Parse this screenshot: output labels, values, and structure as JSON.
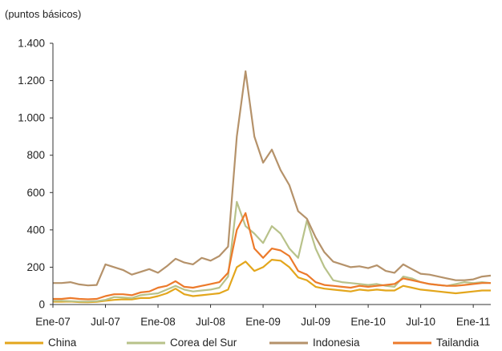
{
  "chart_data": {
    "type": "line",
    "title": "",
    "y_unit_label": "(puntos básicos)",
    "xlabel": "",
    "ylabel": "",
    "ylim": [
      0,
      1400
    ],
    "y_ticks": [
      0,
      200,
      400,
      600,
      800,
      1000,
      1200,
      1400
    ],
    "y_tick_labels": [
      "0",
      "200",
      "400",
      "600",
      "800",
      "1.000",
      "1.200",
      "1.400"
    ],
    "x_range": [
      "2007-01",
      "2011-03"
    ],
    "x_ticks": [
      "2007-01",
      "2007-07",
      "2008-01",
      "2008-07",
      "2009-01",
      "2009-07",
      "2010-01",
      "2010-07",
      "2011-01"
    ],
    "x_tick_labels": [
      "Ene-07",
      "Jul-07",
      "Ene-08",
      "Jul-08",
      "Ene-09",
      "Jul-09",
      "Ene-10",
      "Jul-10",
      "Ene-11"
    ],
    "grid": false,
    "legend_position": "bottom",
    "series": [
      {
        "name": "China",
        "color": "#e3a61c",
        "points": [
          [
            "2007-01",
            15
          ],
          [
            "2007-02",
            15
          ],
          [
            "2007-03",
            16
          ],
          [
            "2007-04",
            13
          ],
          [
            "2007-05",
            12
          ],
          [
            "2007-06",
            14
          ],
          [
            "2007-07",
            20
          ],
          [
            "2007-08",
            25
          ],
          [
            "2007-09",
            28
          ],
          [
            "2007-10",
            27
          ],
          [
            "2007-11",
            35
          ],
          [
            "2007-12",
            35
          ],
          [
            "2008-01",
            45
          ],
          [
            "2008-02",
            60
          ],
          [
            "2008-03",
            85
          ],
          [
            "2008-04",
            55
          ],
          [
            "2008-05",
            45
          ],
          [
            "2008-06",
            50
          ],
          [
            "2008-07",
            55
          ],
          [
            "2008-08",
            60
          ],
          [
            "2008-09",
            80
          ],
          [
            "2008-10",
            200
          ],
          [
            "2008-11",
            230
          ],
          [
            "2008-12",
            180
          ],
          [
            "2009-01",
            200
          ],
          [
            "2009-02",
            240
          ],
          [
            "2009-03",
            235
          ],
          [
            "2009-04",
            200
          ],
          [
            "2009-05",
            145
          ],
          [
            "2009-06",
            130
          ],
          [
            "2009-07",
            95
          ],
          [
            "2009-08",
            85
          ],
          [
            "2009-09",
            80
          ],
          [
            "2009-10",
            75
          ],
          [
            "2009-11",
            70
          ],
          [
            "2009-12",
            80
          ],
          [
            "2010-01",
            75
          ],
          [
            "2010-02",
            80
          ],
          [
            "2010-03",
            75
          ],
          [
            "2010-04",
            75
          ],
          [
            "2010-05",
            100
          ],
          [
            "2010-06",
            90
          ],
          [
            "2010-07",
            80
          ],
          [
            "2010-08",
            75
          ],
          [
            "2010-09",
            70
          ],
          [
            "2010-10",
            65
          ],
          [
            "2010-11",
            60
          ],
          [
            "2010-12",
            65
          ],
          [
            "2011-01",
            70
          ],
          [
            "2011-02",
            75
          ],
          [
            "2011-03",
            75
          ]
        ]
      },
      {
        "name": "Corea del Sur",
        "color": "#b8c28a",
        "points": [
          [
            "2007-01",
            20
          ],
          [
            "2007-02",
            20
          ],
          [
            "2007-03",
            18
          ],
          [
            "2007-04",
            16
          ],
          [
            "2007-05",
            16
          ],
          [
            "2007-06",
            18
          ],
          [
            "2007-07",
            25
          ],
          [
            "2007-08",
            40
          ],
          [
            "2007-09",
            38
          ],
          [
            "2007-10",
            35
          ],
          [
            "2007-11",
            50
          ],
          [
            "2007-12",
            55
          ],
          [
            "2008-01",
            60
          ],
          [
            "2008-02",
            80
          ],
          [
            "2008-03",
            100
          ],
          [
            "2008-04",
            80
          ],
          [
            "2008-05",
            70
          ],
          [
            "2008-06",
            75
          ],
          [
            "2008-07",
            80
          ],
          [
            "2008-08",
            90
          ],
          [
            "2008-09",
            150
          ],
          [
            "2008-10",
            550
          ],
          [
            "2008-11",
            420
          ],
          [
            "2008-12",
            380
          ],
          [
            "2009-01",
            330
          ],
          [
            "2009-02",
            420
          ],
          [
            "2009-03",
            380
          ],
          [
            "2009-04",
            300
          ],
          [
            "2009-05",
            250
          ],
          [
            "2009-06",
            450
          ],
          [
            "2009-07",
            300
          ],
          [
            "2009-08",
            200
          ],
          [
            "2009-09",
            130
          ],
          [
            "2009-10",
            120
          ],
          [
            "2009-11",
            115
          ],
          [
            "2009-12",
            110
          ],
          [
            "2010-01",
            105
          ],
          [
            "2010-02",
            110
          ],
          [
            "2010-03",
            100
          ],
          [
            "2010-04",
            95
          ],
          [
            "2010-05",
            150
          ],
          [
            "2010-06",
            140
          ],
          [
            "2010-07",
            120
          ],
          [
            "2010-08",
            110
          ],
          [
            "2010-09",
            105
          ],
          [
            "2010-10",
            100
          ],
          [
            "2010-11",
            110
          ],
          [
            "2010-12",
            120
          ],
          [
            "2011-01",
            115
          ],
          [
            "2011-02",
            120
          ],
          [
            "2011-03",
            115
          ]
        ]
      },
      {
        "name": "Indonesia",
        "color": "#b5926a",
        "points": [
          [
            "2007-01",
            115
          ],
          [
            "2007-02",
            115
          ],
          [
            "2007-03",
            120
          ],
          [
            "2007-04",
            108
          ],
          [
            "2007-05",
            102
          ],
          [
            "2007-06",
            105
          ],
          [
            "2007-07",
            215
          ],
          [
            "2007-08",
            200
          ],
          [
            "2007-09",
            185
          ],
          [
            "2007-10",
            160
          ],
          [
            "2007-11",
            175
          ],
          [
            "2007-12",
            190
          ],
          [
            "2008-01",
            170
          ],
          [
            "2008-02",
            205
          ],
          [
            "2008-03",
            245
          ],
          [
            "2008-04",
            225
          ],
          [
            "2008-05",
            215
          ],
          [
            "2008-06",
            250
          ],
          [
            "2008-07",
            235
          ],
          [
            "2008-08",
            260
          ],
          [
            "2008-09",
            310
          ],
          [
            "2008-10",
            900
          ],
          [
            "2008-11",
            1250
          ],
          [
            "2008-12",
            900
          ],
          [
            "2009-01",
            760
          ],
          [
            "2009-02",
            830
          ],
          [
            "2009-03",
            720
          ],
          [
            "2009-04",
            640
          ],
          [
            "2009-05",
            500
          ],
          [
            "2009-06",
            460
          ],
          [
            "2009-07",
            360
          ],
          [
            "2009-08",
            280
          ],
          [
            "2009-09",
            230
          ],
          [
            "2009-10",
            215
          ],
          [
            "2009-11",
            200
          ],
          [
            "2009-12",
            205
          ],
          [
            "2010-01",
            195
          ],
          [
            "2010-02",
            210
          ],
          [
            "2010-03",
            180
          ],
          [
            "2010-04",
            170
          ],
          [
            "2010-05",
            215
          ],
          [
            "2010-06",
            190
          ],
          [
            "2010-07",
            165
          ],
          [
            "2010-08",
            160
          ],
          [
            "2010-09",
            150
          ],
          [
            "2010-10",
            140
          ],
          [
            "2010-11",
            130
          ],
          [
            "2010-12",
            130
          ],
          [
            "2011-01",
            135
          ],
          [
            "2011-02",
            150
          ],
          [
            "2011-03",
            155
          ]
        ]
      },
      {
        "name": "Tailandia",
        "color": "#ec7a2b",
        "points": [
          [
            "2007-01",
            30
          ],
          [
            "2007-02",
            30
          ],
          [
            "2007-03",
            35
          ],
          [
            "2007-04",
            30
          ],
          [
            "2007-05",
            28
          ],
          [
            "2007-06",
            30
          ],
          [
            "2007-07",
            45
          ],
          [
            "2007-08",
            55
          ],
          [
            "2007-09",
            55
          ],
          [
            "2007-10",
            50
          ],
          [
            "2007-11",
            65
          ],
          [
            "2007-12",
            70
          ],
          [
            "2008-01",
            90
          ],
          [
            "2008-02",
            100
          ],
          [
            "2008-03",
            125
          ],
          [
            "2008-04",
            95
          ],
          [
            "2008-05",
            90
          ],
          [
            "2008-06",
            100
          ],
          [
            "2008-07",
            110
          ],
          [
            "2008-08",
            120
          ],
          [
            "2008-09",
            170
          ],
          [
            "2008-10",
            400
          ],
          [
            "2008-11",
            490
          ],
          [
            "2008-12",
            300
          ],
          [
            "2009-01",
            250
          ],
          [
            "2009-02",
            300
          ],
          [
            "2009-03",
            290
          ],
          [
            "2009-04",
            260
          ],
          [
            "2009-05",
            180
          ],
          [
            "2009-06",
            160
          ],
          [
            "2009-07",
            120
          ],
          [
            "2009-08",
            105
          ],
          [
            "2009-09",
            100
          ],
          [
            "2009-10",
            95
          ],
          [
            "2009-11",
            90
          ],
          [
            "2009-12",
            100
          ],
          [
            "2010-01",
            95
          ],
          [
            "2010-02",
            100
          ],
          [
            "2010-03",
            105
          ],
          [
            "2010-04",
            110
          ],
          [
            "2010-05",
            140
          ],
          [
            "2010-06",
            130
          ],
          [
            "2010-07",
            120
          ],
          [
            "2010-08",
            110
          ],
          [
            "2010-09",
            105
          ],
          [
            "2010-10",
            100
          ],
          [
            "2010-11",
            100
          ],
          [
            "2010-12",
            105
          ],
          [
            "2011-01",
            110
          ],
          [
            "2011-02",
            115
          ],
          [
            "2011-03",
            115
          ]
        ]
      }
    ]
  }
}
